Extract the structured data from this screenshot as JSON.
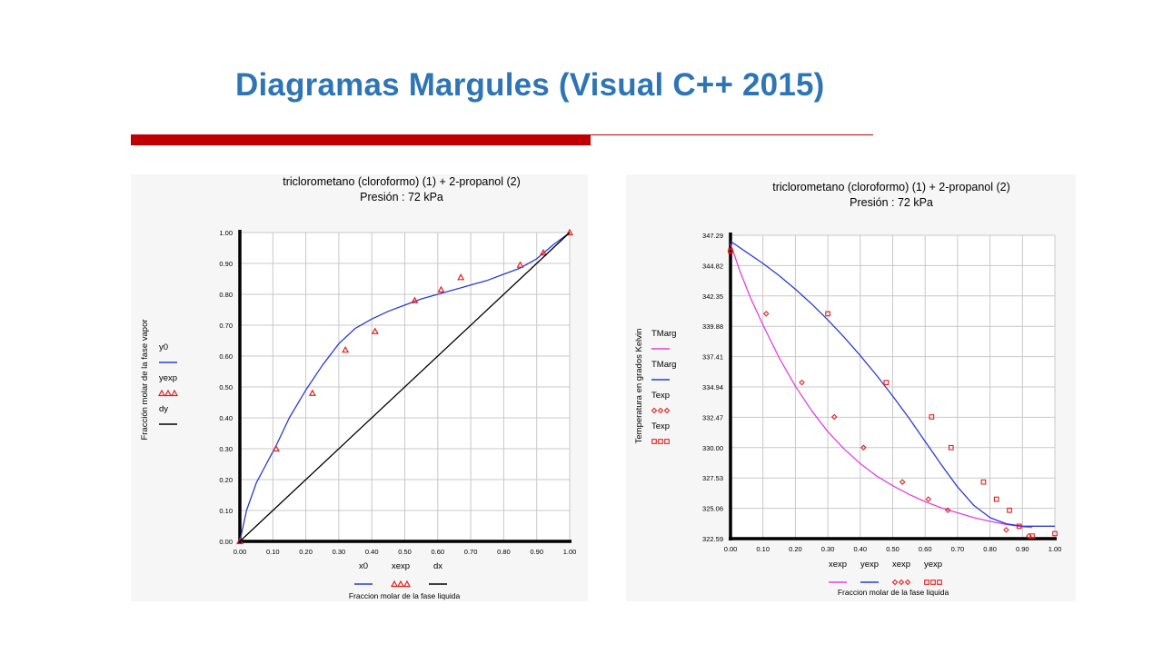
{
  "slide": {
    "title": "Diagramas Margules (Visual C++ 2015)",
    "accent_color": "#2e75b6",
    "bar_color": "#c00000"
  },
  "chart_data": [
    {
      "type": "line",
      "title": "triclorometano (cloroformo) (1)  + 2-propanol (2)",
      "subtitle": "Presión : 72 kPa",
      "xlabel": "Fraccion molar de la fase liquida",
      "ylabel": "Fracción molar de la fase vapor",
      "xlim": [
        0,
        1
      ],
      "ylim": [
        0,
        1
      ],
      "x_ticks": [
        "0.00",
        "0.10",
        "0.20",
        "0.30",
        "0.40",
        "0.50",
        "0.60",
        "0.70",
        "0.80",
        "0.90",
        "1.00"
      ],
      "y_ticks": [
        "0.00",
        "0.10",
        "0.20",
        "0.30",
        "0.40",
        "0.50",
        "0.60",
        "0.70",
        "0.80",
        "0.90",
        "1.00"
      ],
      "grid": true,
      "legend": [
        {
          "name": "y0",
          "color": "#2a3bd1",
          "style": "line"
        },
        {
          "name": "yexp",
          "color": "#e02020",
          "style": "triangle"
        },
        {
          "name": "dy",
          "color": "#000000",
          "style": "line"
        }
      ],
      "bottom_legend": [
        {
          "name": "x0",
          "color": "#2a3bd1",
          "style": "line"
        },
        {
          "name": "xexp",
          "color": "#e02020",
          "style": "triangle"
        },
        {
          "name": "dx",
          "color": "#000000",
          "style": "line"
        }
      ],
      "series": [
        {
          "name": "y0",
          "color": "#2a3bd1",
          "style": "line",
          "x": [
            0,
            0.02,
            0.05,
            0.08,
            0.11,
            0.15,
            0.2,
            0.25,
            0.3,
            0.35,
            0.4,
            0.45,
            0.5,
            0.55,
            0.6,
            0.65,
            0.7,
            0.75,
            0.8,
            0.85,
            0.9,
            0.95,
            1.0
          ],
          "y": [
            0,
            0.1,
            0.19,
            0.25,
            0.31,
            0.4,
            0.49,
            0.57,
            0.64,
            0.69,
            0.72,
            0.745,
            0.765,
            0.785,
            0.8,
            0.815,
            0.83,
            0.845,
            0.865,
            0.885,
            0.915,
            0.96,
            1.0
          ]
        },
        {
          "name": "yexp",
          "color": "#e02020",
          "style": "triangle",
          "x": [
            0,
            0.11,
            0.22,
            0.32,
            0.41,
            0.53,
            0.61,
            0.67,
            0.85,
            0.92,
            1.0
          ],
          "y": [
            0,
            0.3,
            0.48,
            0.62,
            0.68,
            0.78,
            0.815,
            0.855,
            0.895,
            0.935,
            1.0
          ]
        },
        {
          "name": "dy",
          "color": "#000000",
          "style": "line",
          "x": [
            0,
            1
          ],
          "y": [
            0,
            1
          ]
        }
      ]
    },
    {
      "type": "line",
      "title": "triclorometano (cloroformo) (1)  + 2-propanol (2)",
      "subtitle": "Presión : 72 kPa",
      "xlabel": "Fraccion molar de la fase liquida",
      "ylabel": "Temperatura en grados Kelvin",
      "xlim": [
        0,
        1
      ],
      "ylim": [
        322.59,
        347.29
      ],
      "x_ticks": [
        "0.00",
        "0.10",
        "0.20",
        "0.30",
        "0.40",
        "0.50",
        "0.60",
        "0.70",
        "0.80",
        "0.90",
        "1.00"
      ],
      "y_ticks": [
        "322.59",
        "325.06",
        "327.53",
        "330.00",
        "332.47",
        "334.94",
        "337.41",
        "339.88",
        "342.35",
        "344.82",
        "347.29"
      ],
      "grid": true,
      "legend": [
        {
          "name": "TMarg",
          "color": "#e040e0",
          "style": "line"
        },
        {
          "name": "TMarg",
          "color": "#2a3bd1",
          "style": "line"
        },
        {
          "name": "Texp",
          "color": "#e02020",
          "style": "diamond"
        },
        {
          "name": "Texp",
          "color": "#e02020",
          "style": "square"
        }
      ],
      "bottom_legend": [
        {
          "name": "xexp",
          "color": "#e040e0",
          "style": "line"
        },
        {
          "name": "yexp",
          "color": "#2a3bd1",
          "style": "line"
        },
        {
          "name": "xexp",
          "color": "#e02020",
          "style": "diamond"
        },
        {
          "name": "yexp",
          "color": "#e02020",
          "style": "square"
        }
      ],
      "series": [
        {
          "name": "TMarg",
          "color": "#e040e0",
          "style": "line",
          "x": [
            0,
            0.03,
            0.06,
            0.1,
            0.15,
            0.2,
            0.25,
            0.3,
            0.35,
            0.4,
            0.45,
            0.5,
            0.55,
            0.6,
            0.65,
            0.7,
            0.75,
            0.8,
            0.85,
            0.9,
            0.93
          ],
          "y": [
            346.6,
            344.3,
            342.3,
            340.0,
            337.3,
            335.0,
            333.0,
            331.3,
            329.9,
            328.7,
            327.7,
            326.9,
            326.2,
            325.6,
            325.1,
            324.7,
            324.3,
            324.0,
            323.75,
            323.55,
            323.5
          ]
        },
        {
          "name": "TMarg",
          "color": "#2a3bd1",
          "style": "line",
          "x": [
            0,
            0.05,
            0.1,
            0.15,
            0.2,
            0.25,
            0.3,
            0.35,
            0.4,
            0.45,
            0.5,
            0.55,
            0.6,
            0.65,
            0.7,
            0.75,
            0.8,
            0.85,
            0.9,
            0.95,
            1.0
          ],
          "y": [
            346.8,
            345.9,
            345.0,
            344.0,
            342.9,
            341.7,
            340.4,
            339.0,
            337.5,
            335.9,
            334.2,
            332.4,
            330.5,
            328.6,
            326.8,
            325.3,
            324.3,
            323.8,
            323.6,
            323.6,
            323.6
          ]
        },
        {
          "name": "Texp",
          "color": "#e02020",
          "style": "diamond",
          "x": [
            0,
            0.11,
            0.22,
            0.32,
            0.41,
            0.53,
            0.61,
            0.67,
            0.85,
            0.92
          ],
          "y": [
            346.0,
            340.9,
            335.3,
            332.5,
            330.0,
            327.2,
            325.8,
            324.9,
            323.3,
            322.8
          ]
        },
        {
          "name": "Texp",
          "color": "#e02020",
          "style": "square",
          "x": [
            0,
            0.3,
            0.48,
            0.62,
            0.68,
            0.78,
            0.82,
            0.86,
            0.89,
            0.93,
            1.0
          ],
          "y": [
            346.0,
            340.9,
            335.3,
            332.5,
            330.0,
            327.2,
            325.8,
            324.9,
            323.6,
            322.8,
            323.0
          ]
        }
      ]
    }
  ]
}
